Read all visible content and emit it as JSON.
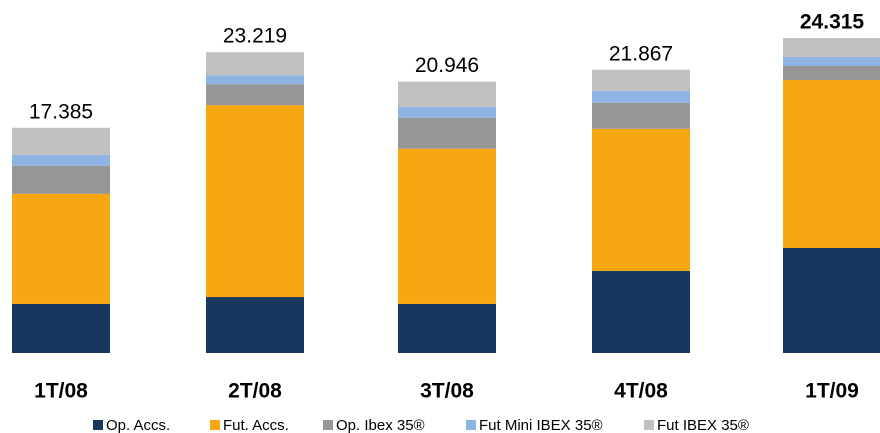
{
  "chart_data": {
    "type": "stacked_bar",
    "categories": [
      "1T/08",
      "2T/08",
      "3T/08",
      "4T/08",
      "1T/09"
    ],
    "series": [
      {
        "name": "Op. Accs.",
        "color": "#17375e",
        "values": [
          3785,
          4320,
          3787,
          6336,
          8105
        ]
      },
      {
        "name": "Fut. Accs.",
        "color": "#f7a711",
        "values": [
          8500,
          14810,
          11980,
          10972,
          12970
        ]
      },
      {
        "name": "Op. Ibex 35®",
        "color": "#969696",
        "values": [
          2165,
          1620,
          2396,
          2009,
          1080
        ]
      },
      {
        "name": "Fut Mini IBEX 35®",
        "color": "#8db4e2",
        "values": [
          850,
          695,
          850,
          927,
          695
        ]
      },
      {
        "name": "Fut IBEX 35®",
        "color": "#c0c0c0",
        "values": [
          2085,
          1774,
          1933,
          1623,
          1465
        ]
      }
    ],
    "totals": {
      "values": [
        17385,
        23219,
        20946,
        21867,
        24315
      ],
      "value_labels": [
        "17.385",
        "23.219",
        "20.946",
        "21.867",
        "24.315"
      ]
    },
    "legend": "bottom"
  }
}
